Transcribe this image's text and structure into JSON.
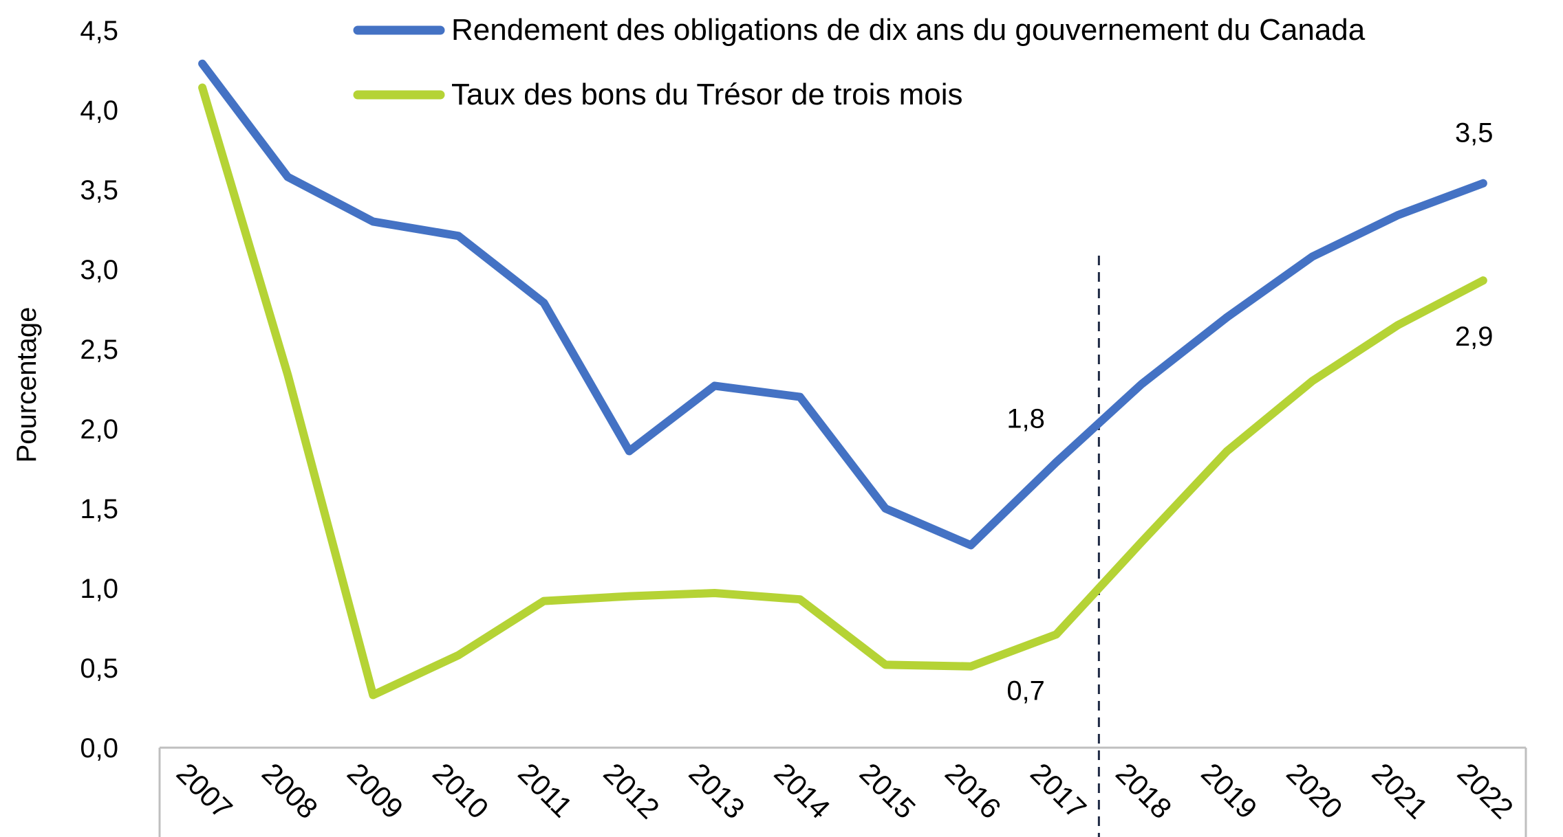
{
  "chart_data": {
    "type": "line",
    "ylabel": "Pourcentage",
    "ylim": [
      0,
      4.5
    ],
    "y_ticks": [
      "0,0",
      "0,5",
      "1,0",
      "1,5",
      "2,0",
      "2,5",
      "3,0",
      "3,5",
      "4,0",
      "4,5"
    ],
    "categories": [
      "2007",
      "2008",
      "2009",
      "2010",
      "2011",
      "2012",
      "2013",
      "2014",
      "2015",
      "2016",
      "2017",
      "2018",
      "2019",
      "2020",
      "2021",
      "2022"
    ],
    "series": [
      {
        "name": "Rendement des obligations de dix ans du gouvernement du Canada",
        "color": "#4472C4",
        "values": [
          4.29,
          3.58,
          3.3,
          3.21,
          2.79,
          1.86,
          2.27,
          2.2,
          1.5,
          1.27,
          1.79,
          2.28,
          2.7,
          3.08,
          3.34,
          3.54
        ]
      },
      {
        "name": "Taux des bons du Trésor de trois mois",
        "color": "#B5D335",
        "values": [
          4.14,
          2.34,
          0.33,
          0.58,
          0.92,
          0.95,
          0.97,
          0.93,
          0.52,
          0.51,
          0.71,
          1.29,
          1.86,
          2.3,
          2.65,
          2.93
        ]
      }
    ],
    "annotations": [
      {
        "text": "1,8",
        "series": 0,
        "index": 10
      },
      {
        "text": "0,7",
        "series": 1,
        "index": 10
      },
      {
        "text": "3,5",
        "series": 0,
        "index": 15
      },
      {
        "text": "2,9",
        "series": 1,
        "index": 15
      }
    ],
    "divider_after_index": 10,
    "legend_position": "top-center",
    "grid": false
  }
}
